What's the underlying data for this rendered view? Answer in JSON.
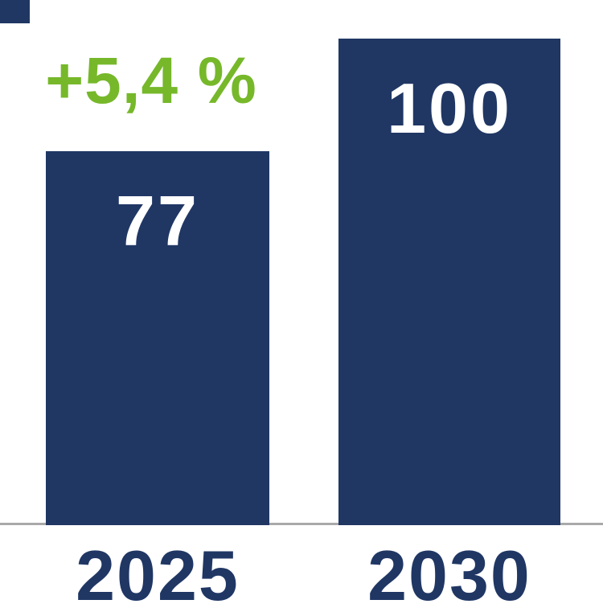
{
  "chart_data": {
    "type": "bar",
    "categories": [
      "2025",
      "2030"
    ],
    "values": [
      77,
      100
    ],
    "title": "",
    "xlabel": "",
    "ylabel": "",
    "ylim": [
      0,
      100
    ],
    "grid": false,
    "legend": "none",
    "annotation": "+5,4 %",
    "annotation_color": "#76b82a",
    "bar_color": "#203764",
    "value_label_color": "#ffffff",
    "tick_label_color": "#203764",
    "baseline_color": "#a9a9a9"
  },
  "bars": [
    {
      "value_label": "77",
      "tick_label": "2025"
    },
    {
      "value_label": "100",
      "tick_label": "2030"
    }
  ],
  "annotation": {
    "text": "+5,4 %"
  }
}
